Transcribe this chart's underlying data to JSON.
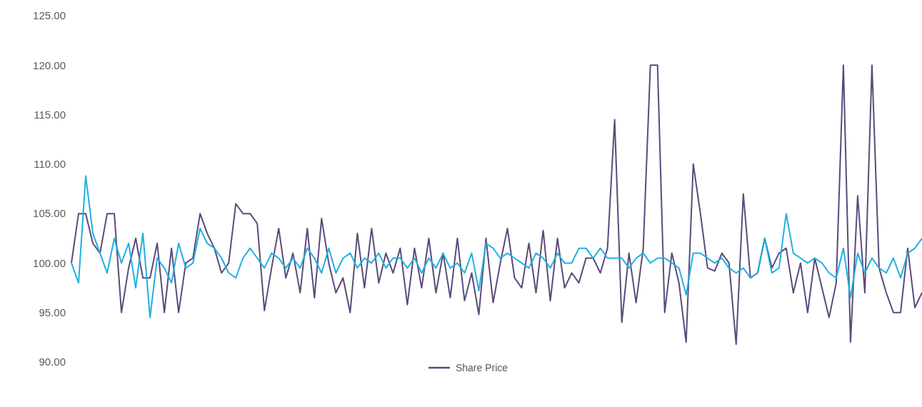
{
  "chart_data": {
    "type": "line",
    "categories": [
      null,
      null,
      null,
      null,
      null,
      null,
      null,
      null,
      null,
      null,
      null,
      null,
      null,
      null,
      null,
      null,
      null,
      null,
      null,
      null,
      null,
      null,
      null,
      null,
      null,
      null,
      null,
      null,
      null,
      null,
      null,
      null,
      null,
      null,
      null,
      null,
      null,
      null,
      null,
      null,
      null,
      null,
      null,
      null,
      null,
      null,
      null,
      null,
      null,
      null,
      null,
      null,
      null,
      null,
      null,
      null,
      null,
      null,
      null,
      null,
      null,
      null,
      null,
      null,
      null,
      null,
      null,
      null,
      null,
      null,
      null,
      null,
      null,
      null,
      null,
      null,
      null,
      null,
      null,
      null,
      null,
      null,
      null,
      null,
      null,
      null,
      null,
      null,
      null,
      null,
      null,
      null,
      null,
      null,
      null,
      null,
      null,
      null,
      null,
      null,
      null,
      null,
      null,
      null,
      null,
      null,
      null,
      null,
      null,
      null,
      null,
      null,
      null,
      null,
      null,
      null,
      null,
      null,
      null,
      null
    ],
    "series": [
      {
        "name": "Share Price",
        "color": "#5b4a7a",
        "values": [
          100,
          105,
          105,
          102,
          101,
          105,
          105,
          95,
          99.5,
          102.5,
          98.5,
          98.5,
          102,
          95,
          101.5,
          95,
          100,
          100.5,
          105,
          103,
          101.5,
          99,
          100,
          106,
          105,
          105,
          104,
          95.2,
          99.5,
          103.5,
          98.5,
          101,
          97,
          103.5,
          96.5,
          104.5,
          100,
          97,
          98.5,
          95,
          103,
          97.5,
          103.5,
          98,
          101,
          99,
          101.5,
          95.8,
          101.5,
          97.5,
          102.5,
          97,
          101,
          96.5,
          102.5,
          96.2,
          99,
          94.8,
          102.5,
          96,
          100,
          103.5,
          98.5,
          97.5,
          102,
          97,
          103.3,
          96.2,
          102.5,
          97.5,
          99,
          98,
          100.5,
          100.5,
          99,
          101.5,
          114.5,
          94,
          101,
          96,
          101.5,
          120,
          120,
          95,
          101,
          98,
          92,
          110,
          105,
          99.5,
          99.2,
          101,
          100,
          91.8,
          107,
          98.5,
          99,
          102.5,
          99.5,
          101,
          101.5,
          97,
          100,
          95,
          100.5,
          97.5,
          94.5,
          98,
          120,
          92,
          106.8,
          97,
          120,
          99.5,
          97,
          95,
          95,
          101.5,
          95.5,
          97
        ]
      },
      {
        "color": "#1fb0e0",
        "values": [
          100,
          98,
          108.8,
          103,
          101,
          99,
          102.5,
          100,
          102,
          97.5,
          103,
          94.5,
          100.5,
          99.5,
          98,
          102,
          99.5,
          100,
          103.5,
          102,
          101.5,
          100.5,
          99,
          98.5,
          100.5,
          101.5,
          100.5,
          99.5,
          101,
          100.5,
          99.5,
          100.5,
          99.5,
          101.5,
          100.5,
          99,
          101.5,
          99,
          100.5,
          101,
          99.5,
          100.5,
          100,
          101,
          99.5,
          100.5,
          100.5,
          99.5,
          100.5,
          99,
          100.5,
          99.5,
          101,
          99.5,
          100,
          99,
          101,
          97.2,
          102,
          101.5,
          100.5,
          101,
          100.5,
          100,
          99.5,
          101,
          100.5,
          99.5,
          101,
          100,
          100,
          101.5,
          101.5,
          100.5,
          101.5,
          100.5,
          100.5,
          100.5,
          99.5,
          100.5,
          101,
          100,
          100.5,
          100.5,
          100,
          99.5,
          96.8,
          101,
          101,
          100.5,
          100,
          100.5,
          99.5,
          99,
          99.5,
          98.5,
          99,
          102.5,
          99,
          99.5,
          105,
          101,
          100.5,
          100,
          100.5,
          100,
          99,
          98.5,
          101.5,
          96.5,
          101,
          99,
          100.5,
          99.5,
          99,
          100.5,
          98.5,
          101,
          101.5,
          102.5
        ]
      }
    ],
    "ylim": [
      90,
      125
    ],
    "yticks": [
      {
        "value": 90,
        "label": "90.00"
      },
      {
        "value": 95,
        "label": "95.00"
      },
      {
        "value": 100,
        "label": "100.00"
      },
      {
        "value": 105,
        "label": "105.00"
      },
      {
        "value": 110,
        "label": "110.00"
      },
      {
        "value": 115,
        "label": "115.00"
      },
      {
        "value": 120,
        "label": "120.00"
      },
      {
        "value": 125,
        "label": "125.00"
      }
    ],
    "tick_labels": "y",
    "grid": false,
    "legend": "bottom",
    "marker": "none",
    "line_style": "solid"
  }
}
